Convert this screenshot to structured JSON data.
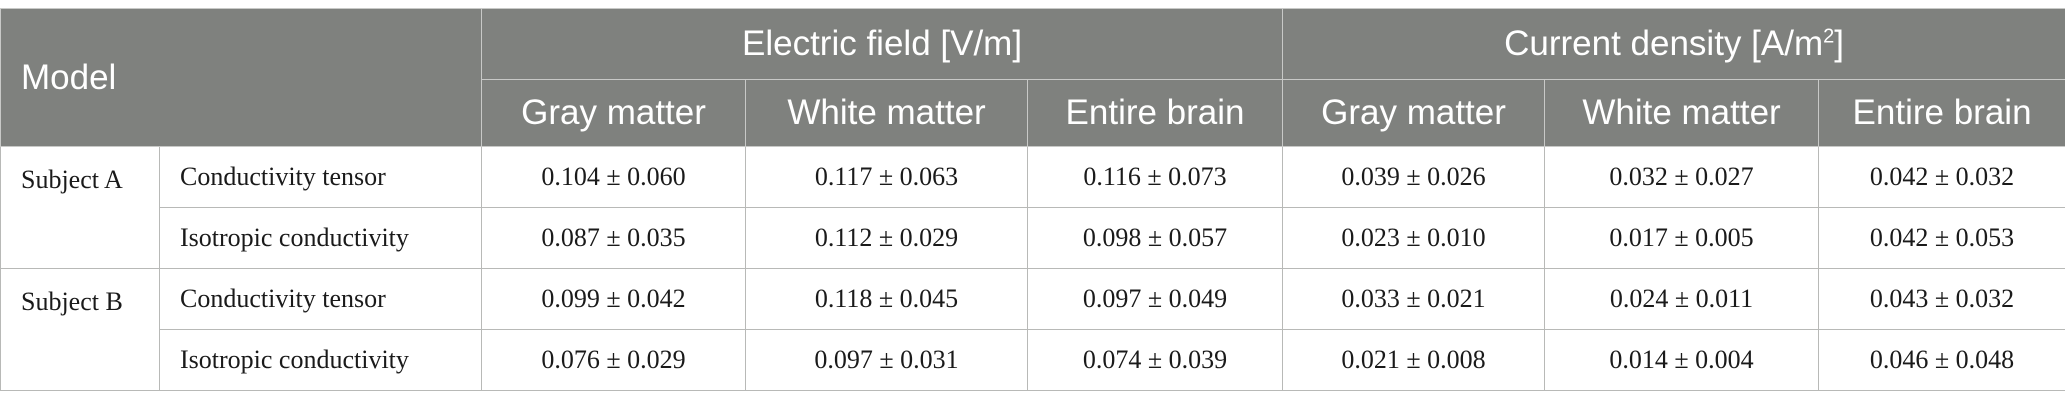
{
  "table": {
    "model_label": "Model",
    "group_headers": [
      {
        "label": "Electric field [V/m]"
      },
      {
        "label": "Current density [A/m",
        "sup": "2",
        "suffix": "]"
      }
    ],
    "sub_headers": [
      "Gray matter",
      "White matter",
      "Entire brain",
      "Gray matter",
      "White matter",
      "Entire brain"
    ],
    "rows": [
      {
        "subject": "Subject A",
        "condition": "Conductivity tensor",
        "values": [
          "0.104 ± 0.060",
          "0.117 ± 0.063",
          "0.116 ± 0.073",
          "0.039 ± 0.026",
          "0.032 ± 0.027",
          "0.042 ± 0.032"
        ]
      },
      {
        "subject": "",
        "condition": "Isotropic conductivity",
        "values": [
          "0.087 ± 0.035",
          "0.112 ± 0.029",
          "0.098 ± 0.057",
          "0.023 ± 0.010",
          "0.017 ± 0.005",
          "0.042 ± 0.053"
        ]
      },
      {
        "subject": "Subject B",
        "condition": "Conductivity tensor",
        "values": [
          "0.099 ± 0.042",
          "0.118 ± 0.045",
          "0.097 ± 0.049",
          "0.033 ± 0.021",
          "0.024 ± 0.011",
          "0.043 ± 0.032"
        ]
      },
      {
        "subject": "",
        "condition": "Isotropic conductivity",
        "values": [
          "0.076 ± 0.029",
          "0.097 ± 0.031",
          "0.074 ± 0.039",
          "0.021 ± 0.008",
          "0.014 ± 0.004",
          "0.046 ± 0.048"
        ]
      }
    ]
  }
}
